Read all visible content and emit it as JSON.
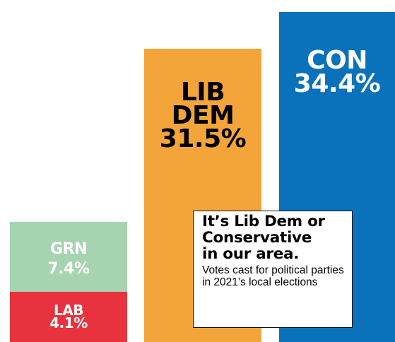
{
  "chart_data": {
    "type": "bar",
    "categories": [
      "GRN",
      "LAB",
      "LIB DEM",
      "CON"
    ],
    "values": [
      7.4,
      4.1,
      31.5,
      34.4
    ],
    "layout": "GRN stacked on LAB in first column",
    "colors": {
      "GRN": "#a6d3b0",
      "LAB": "#e8333e",
      "LIB DEM": "#f4a53a",
      "CON": "#0a72bb"
    },
    "labels": {
      "GRN": {
        "name": "GRN",
        "value": "7.4%"
      },
      "LAB": {
        "name": "LAB",
        "value": "4.1%"
      },
      "LIB DEM": {
        "name_lines": [
          "LIB",
          "DEM"
        ],
        "value": "31.5%"
      },
      "CON": {
        "name": "CON",
        "value": "34.4%"
      }
    }
  },
  "callout": {
    "title_lines": [
      "It’s Lib Dem or",
      "Conservative",
      "in our area."
    ],
    "subtitle": "Votes cast for political parties in 2021’s local elections"
  }
}
